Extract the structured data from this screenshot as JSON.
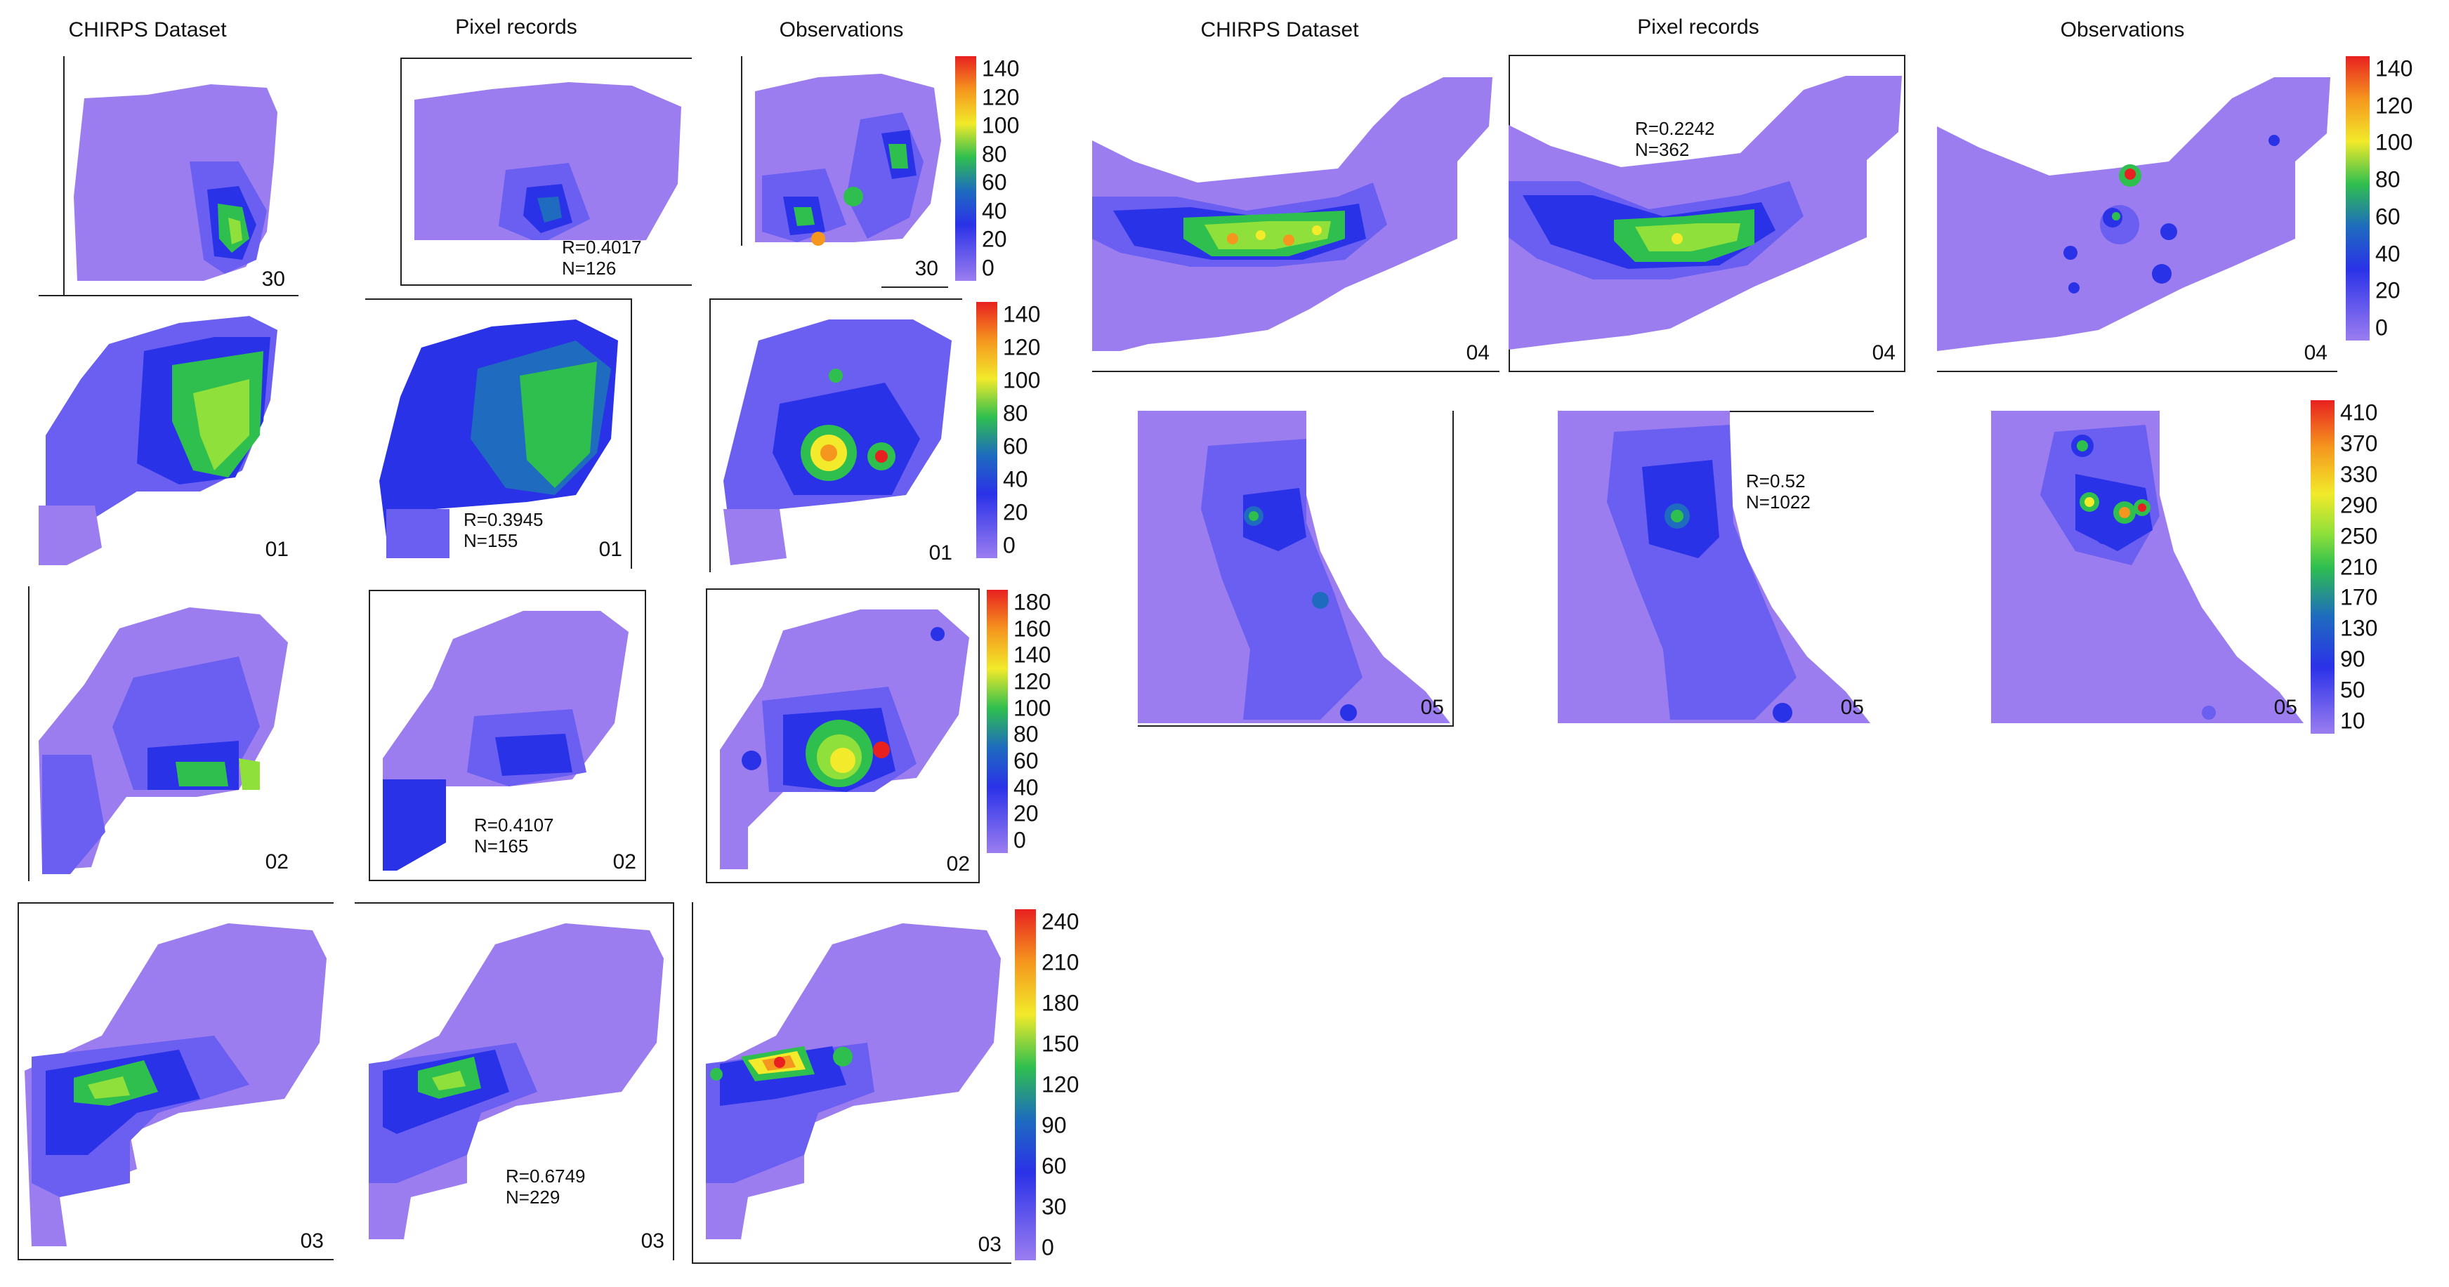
{
  "column_titles": {
    "left": [
      "CHIRPS Dataset",
      "Pixel records",
      "Observations"
    ],
    "right": [
      "CHIRPS Dataset",
      "Pixel records",
      "Observations"
    ]
  },
  "rows": [
    {
      "chirps_label": "30",
      "pixel_label": "",
      "obs_label": "30",
      "stats_r": "R=0.4017",
      "stats_n": "N=126"
    },
    {
      "chirps_label": "01",
      "pixel_label": "01",
      "obs_label": "01",
      "stats_r": "R=0.3945",
      "stats_n": "N=155"
    },
    {
      "chirps_label": "02",
      "pixel_label": "02",
      "obs_label": "02",
      "stats_r": "R=0.4107",
      "stats_n": "N=165"
    },
    {
      "chirps_label": "03",
      "pixel_label": "03",
      "obs_label": "03",
      "stats_r": "R=0.6749",
      "stats_n": "N=229"
    },
    {
      "chirps_label": "04",
      "pixel_label": "04",
      "obs_label": "04",
      "stats_r": "R=0.2242",
      "stats_n": "N=362"
    },
    {
      "chirps_label": "05",
      "pixel_label": "05",
      "obs_label": "05",
      "stats_r": "R=0.52",
      "stats_n": "N=1022"
    }
  ],
  "colorbars": [
    {
      "ticks": [
        "140",
        "120",
        "100",
        "80",
        "60",
        "40",
        "20",
        "0"
      ]
    },
    {
      "ticks": [
        "140",
        "120",
        "100",
        "80",
        "60",
        "40",
        "20",
        "0"
      ]
    },
    {
      "ticks": [
        "180",
        "160",
        "140",
        "120",
        "100",
        "80",
        "60",
        "40",
        "20",
        "0"
      ]
    },
    {
      "ticks": [
        "240",
        "210",
        "180",
        "150",
        "120",
        "90",
        "60",
        "30",
        "0"
      ]
    },
    {
      "ticks": [
        "140",
        "120",
        "100",
        "80",
        "60",
        "40",
        "20",
        "0"
      ]
    },
    {
      "ticks": [
        "410",
        "370",
        "330",
        "290",
        "250",
        "210",
        "170",
        "130",
        "90",
        "50",
        "10"
      ]
    }
  ],
  "colors": {
    "low": "#9b7df0",
    "mid_low": "#6a5ff0",
    "blue": "#2a32e8",
    "teal": "#1e6bbf",
    "green": "#2fbf4f",
    "light_green": "#8fe03a",
    "yellow": "#f2ea2a",
    "orange": "#f5961e",
    "red": "#e82020"
  }
}
